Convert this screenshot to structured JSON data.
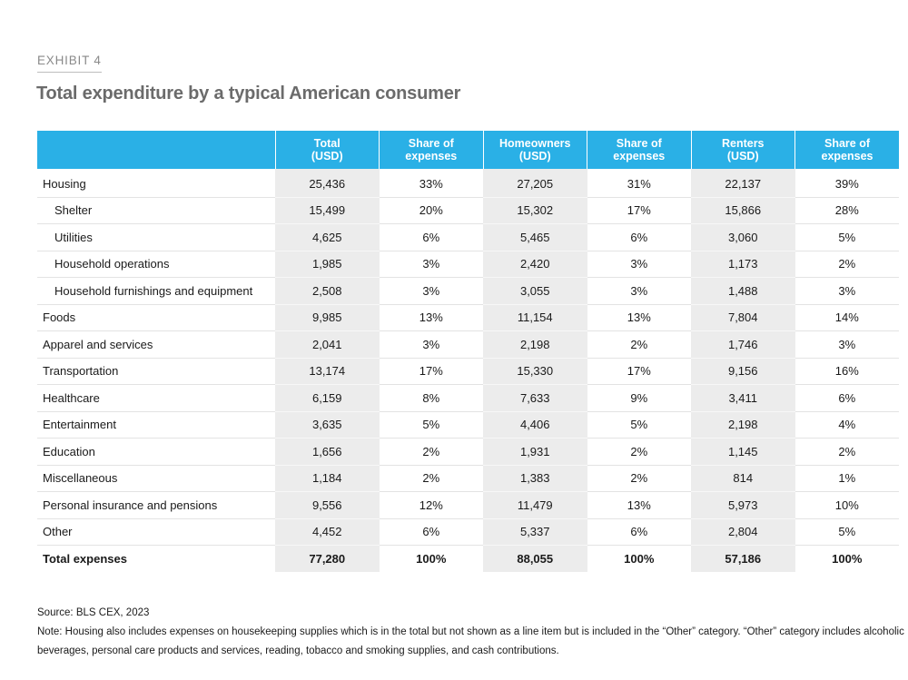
{
  "exhibit_label": "EXHIBIT 4",
  "title": "Total expenditure by a typical American consumer",
  "table": {
    "headers": [
      {
        "line1": "",
        "line2": ""
      },
      {
        "line1": "Total",
        "line2": "(USD)"
      },
      {
        "line1": "Share of",
        "line2": "expenses"
      },
      {
        "line1": "Homeowners",
        "line2": "(USD)"
      },
      {
        "line1": "Share of",
        "line2": "expenses"
      },
      {
        "line1": "Renters",
        "line2": "(USD)"
      },
      {
        "line1": "Share of",
        "line2": "expenses"
      }
    ],
    "rows": [
      {
        "label": "Housing",
        "cells": [
          "25,436",
          "33%",
          "27,205",
          "31%",
          "22,137",
          "39%"
        ]
      },
      {
        "label": "Shelter",
        "cells": [
          "15,499",
          "20%",
          "15,302",
          "17%",
          "15,866",
          "28%"
        ]
      },
      {
        "label": "Utilities",
        "cells": [
          "4,625",
          "6%",
          "5,465",
          "6%",
          "3,060",
          "5%"
        ]
      },
      {
        "label": "Household operations",
        "cells": [
          "1,985",
          "3%",
          "2,420",
          "3%",
          "1,173",
          "2%"
        ]
      },
      {
        "label": "Household furnishings and equipment",
        "cells": [
          "2,508",
          "3%",
          "3,055",
          "3%",
          "1,488",
          "3%"
        ]
      },
      {
        "label": "Foods",
        "cells": [
          "9,985",
          "13%",
          "11,154",
          "13%",
          "7,804",
          "14%"
        ]
      },
      {
        "label": "Apparel and services",
        "cells": [
          "2,041",
          "3%",
          "2,198",
          "2%",
          "1,746",
          "3%"
        ]
      },
      {
        "label": "Transportation",
        "cells": [
          "13,174",
          "17%",
          "15,330",
          "17%",
          "9,156",
          "16%"
        ]
      },
      {
        "label": "Healthcare",
        "cells": [
          "6,159",
          "8%",
          "7,633",
          "9%",
          "3,411",
          "6%"
        ]
      },
      {
        "label": "Entertainment",
        "cells": [
          "3,635",
          "5%",
          "4,406",
          "5%",
          "2,198",
          "4%"
        ]
      },
      {
        "label": "Education",
        "cells": [
          "1,656",
          "2%",
          "1,931",
          "2%",
          "1,145",
          "2%"
        ]
      },
      {
        "label": "Miscellaneous",
        "cells": [
          "1,184",
          "2%",
          "1,383",
          "2%",
          "814",
          "1%"
        ]
      },
      {
        "label": "Personal insurance and pensions",
        "cells": [
          "9,556",
          "12%",
          "11,479",
          "13%",
          "5,973",
          "10%"
        ]
      },
      {
        "label": "Other",
        "cells": [
          "4,452",
          "6%",
          "5,337",
          "6%",
          "2,804",
          "5%"
        ]
      },
      {
        "label": "Total expenses",
        "cells": [
          "77,280",
          "100%",
          "88,055",
          "100%",
          "57,186",
          "100%"
        ]
      }
    ]
  },
  "source": "Source: BLS CEX, 2023",
  "note": "Note: Housing also includes expenses on housekeeping supplies which is in the total but not shown as a line item but is included in the “Other” category. “Other” category includes alcoholic beverages, personal care products and services, reading, tobacco and smoking supplies, and cash contributions.",
  "colors": {
    "header_bg": "#2ab0e6",
    "shaded_column": "#ececec",
    "title": "#6b6b6b"
  }
}
